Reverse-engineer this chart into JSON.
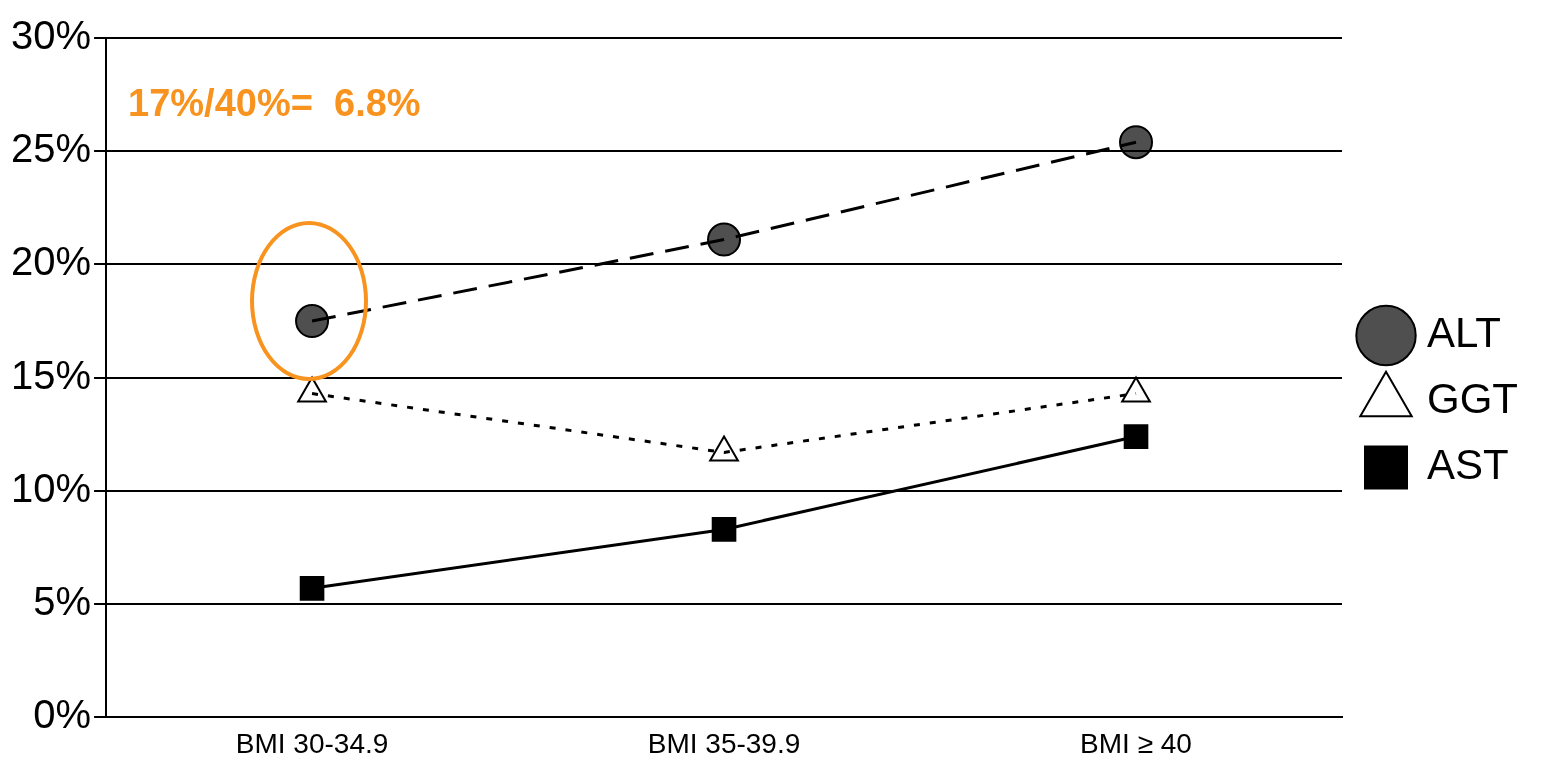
{
  "chart_data": {
    "type": "line",
    "categories": [
      "BMI 30-34.9",
      "BMI 35-39.9",
      "BMI ≥ 40"
    ],
    "series": [
      {
        "name": "ALT",
        "color": "#000000",
        "values": [
          17.5,
          21.1,
          25.4
        ],
        "marker": "circle",
        "line_style": "dashed"
      },
      {
        "name": "GGT",
        "color": "#000000",
        "values": [
          14.3,
          11.7,
          14.3
        ],
        "marker": "triangle",
        "line_style": "dotted"
      },
      {
        "name": "AST",
        "color": "#000000",
        "values": [
          5.7,
          8.3,
          12.4
        ],
        "marker": "square",
        "line_style": "solid"
      }
    ],
    "ylim": [
      0,
      30
    ],
    "yticks": [
      {
        "value": 0,
        "label": "0%"
      },
      {
        "value": 5,
        "label": "5%"
      },
      {
        "value": 10,
        "label": "10%"
      },
      {
        "value": 15,
        "label": "15%"
      },
      {
        "value": 20,
        "label": "20%"
      },
      {
        "value": 25,
        "label": "25%"
      },
      {
        "value": 30,
        "label": "30%"
      }
    ],
    "grid": "y",
    "legend": "right",
    "annotations": [
      "17%/40%=  6.8%"
    ]
  }
}
